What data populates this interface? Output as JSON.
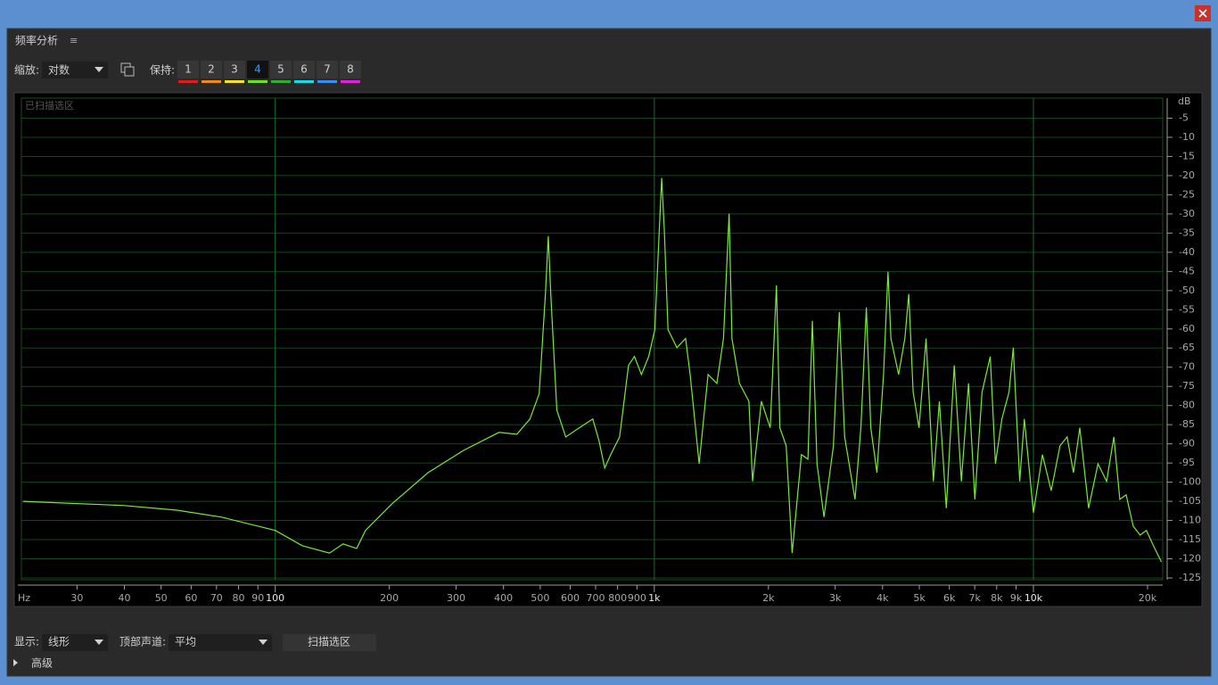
{
  "panel": {
    "title": "频率分析",
    "menu_icon": "≡"
  },
  "toolbar": {
    "zoom_label": "缩放:",
    "zoom_value": "对数",
    "hold_label": "保持:",
    "hold_buttons": [
      {
        "label": "1",
        "color": "#e41b1b"
      },
      {
        "label": "2",
        "color": "#f08a10"
      },
      {
        "label": "3",
        "color": "#f2e51c"
      },
      {
        "label": "4",
        "color": "#6ee02a",
        "active": true
      },
      {
        "label": "5",
        "color": "#2fae33"
      },
      {
        "label": "6",
        "color": "#19d8e8"
      },
      {
        "label": "7",
        "color": "#3a8ef0"
      },
      {
        "label": "8",
        "color": "#e020d8"
      }
    ]
  },
  "chart_data": {
    "type": "line",
    "annotation": "已扫描选区",
    "x_label": "Hz",
    "y_label": "dB",
    "xscale": "log",
    "grid": true,
    "xlim": [
      21.4,
      21930
    ],
    "ylim": [
      -125,
      0
    ],
    "xticks": [
      30,
      40,
      50,
      60,
      70,
      80,
      90,
      100,
      200,
      300,
      400,
      500,
      600,
      700,
      800,
      900,
      {
        "value": 1000,
        "label": "1k"
      },
      {
        "value": 2000,
        "label": "2k"
      },
      {
        "value": 3000,
        "label": "3k"
      },
      {
        "value": 4000,
        "label": "4k"
      },
      {
        "value": 5000,
        "label": "5k"
      },
      {
        "value": 6000,
        "label": "6k"
      },
      {
        "value": 7000,
        "label": "7k"
      },
      {
        "value": 8000,
        "label": "8k"
      },
      {
        "value": 9000,
        "label": "9k"
      },
      {
        "value": 10000,
        "label": "10k"
      },
      {
        "value": 20000,
        "label": "20k"
      }
    ],
    "yticks": [
      -5,
      -10,
      -15,
      -20,
      -25,
      -30,
      -35,
      -40,
      -45,
      -50,
      -55,
      -60,
      -65,
      -70,
      -75,
      -80,
      -85,
      -90,
      -95,
      -100,
      -105,
      -110,
      -115,
      -120,
      -125
    ],
    "x": [
      21.6,
      40,
      55,
      72,
      100,
      118,
      139,
      151,
      164,
      173,
      203,
      253,
      314,
      389,
      434,
      470,
      497,
      516,
      525,
      533,
      553,
      584,
      634,
      688,
      715,
      740,
      767,
      810,
      855,
      886,
      925,
      966,
      1003,
      1030,
      1046,
      1063,
      1087,
      1147,
      1209,
      1243,
      1313,
      1386,
      1462,
      1522,
      1575,
      1602,
      1677,
      1776,
      1816,
      1916,
      2022,
      2100,
      2143,
      2227,
      2310,
      2444,
      2542,
      2612,
      2686,
      2802,
      2967,
      3075,
      3177,
      3384,
      3507,
      3624,
      3724,
      3865,
      4023,
      4134,
      4209,
      4409,
      4579,
      4689,
      4815,
      4992,
      5211,
      5445,
      5648,
      5890,
      6181,
      6454,
      6742,
      7005,
      7320,
      7696,
      7940,
      8255,
      8620,
      8850,
      9200,
      9460,
      10000,
      10560,
      11140,
      11750,
      12270,
      12750,
      13250,
      13980,
      14800,
      15600,
      16300,
      16900,
      17560,
      18330,
      19120,
      19860,
      20620,
      21750
    ],
    "series": [
      {
        "color": "#7be83a",
        "values": [
          -105,
          -106.1,
          -107.3,
          -109.1,
          -112.6,
          -116.6,
          -118.5,
          -116.1,
          -117.3,
          -112.6,
          -105.7,
          -97.5,
          -91.7,
          -87,
          -87.5,
          -83.5,
          -76.9,
          -50.9,
          -35.8,
          -50.9,
          -81.2,
          -88.2,
          -85.8,
          -83.5,
          -89.3,
          -96.3,
          -92.8,
          -88.2,
          -69.5,
          -67.2,
          -71.9,
          -67.2,
          -60.2,
          -34.6,
          -20.6,
          -34.6,
          -60.2,
          -64.9,
          -62.5,
          -71.9,
          -95.2,
          -71.9,
          -74.2,
          -62.5,
          -29.9,
          -62.5,
          -74.2,
          -78.9,
          -99.8,
          -78.9,
          -85.8,
          -48.6,
          -85.8,
          -90.5,
          -118.5,
          -92.8,
          -94,
          -57.9,
          -95.2,
          -109.1,
          -90.5,
          -55.6,
          -88.2,
          -104.5,
          -85.8,
          -54.4,
          -85.8,
          -97.5,
          -71.9,
          -45.1,
          -62.5,
          -71.9,
          -62.5,
          -50.9,
          -76.5,
          -85.8,
          -62.5,
          -99.8,
          -78.9,
          -106.8,
          -69.5,
          -99.8,
          -74.2,
          -104.5,
          -76.5,
          -67.2,
          -95.2,
          -83.5,
          -76.5,
          -64.9,
          -99.8,
          -83.5,
          -108,
          -92.8,
          -102.2,
          -90.5,
          -88.2,
          -97.5,
          -85.8,
          -106.8,
          -95.2,
          -99.8,
          -88.2,
          -104.5,
          -103.3,
          -111.5,
          -113.8,
          -112.6,
          -116.1,
          -120.8
        ]
      }
    ]
  },
  "footer": {
    "display_label": "显示:",
    "display_value": "线形",
    "channel_label": "顶部声道:",
    "channel_value": "平均",
    "scan_button": "扫描选区",
    "advanced": "高级"
  }
}
